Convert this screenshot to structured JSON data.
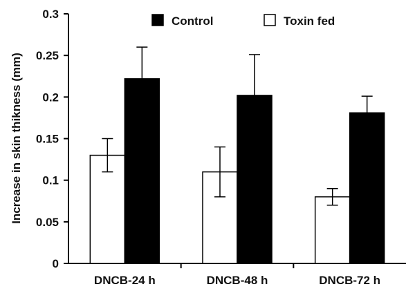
{
  "chart_data": {
    "type": "bar",
    "categories": [
      "DNCB-24 h",
      "DNCB-48 h",
      "DNCB-72 h"
    ],
    "series": [
      {
        "name": "Toxin fed",
        "fill": "#ffffff",
        "values": [
          0.13,
          0.11,
          0.08
        ],
        "errors": [
          0.02,
          0.03,
          0.01
        ]
      },
      {
        "name": "Control",
        "fill": "#000000",
        "values": [
          0.222,
          0.202,
          0.181
        ],
        "errors": [
          0.038,
          0.049,
          0.02
        ]
      }
    ],
    "title": "",
    "xlabel": "",
    "ylabel": "Increase in skin thikness (mm)",
    "ylim": [
      0,
      0.3
    ],
    "yticks": [
      "0",
      "0.05",
      "0.1",
      "0.15",
      "0.2",
      "0.25",
      "0.3"
    ],
    "legend": {
      "placement": "top",
      "order": [
        "Control",
        "Toxin fed"
      ]
    },
    "grid": false
  }
}
